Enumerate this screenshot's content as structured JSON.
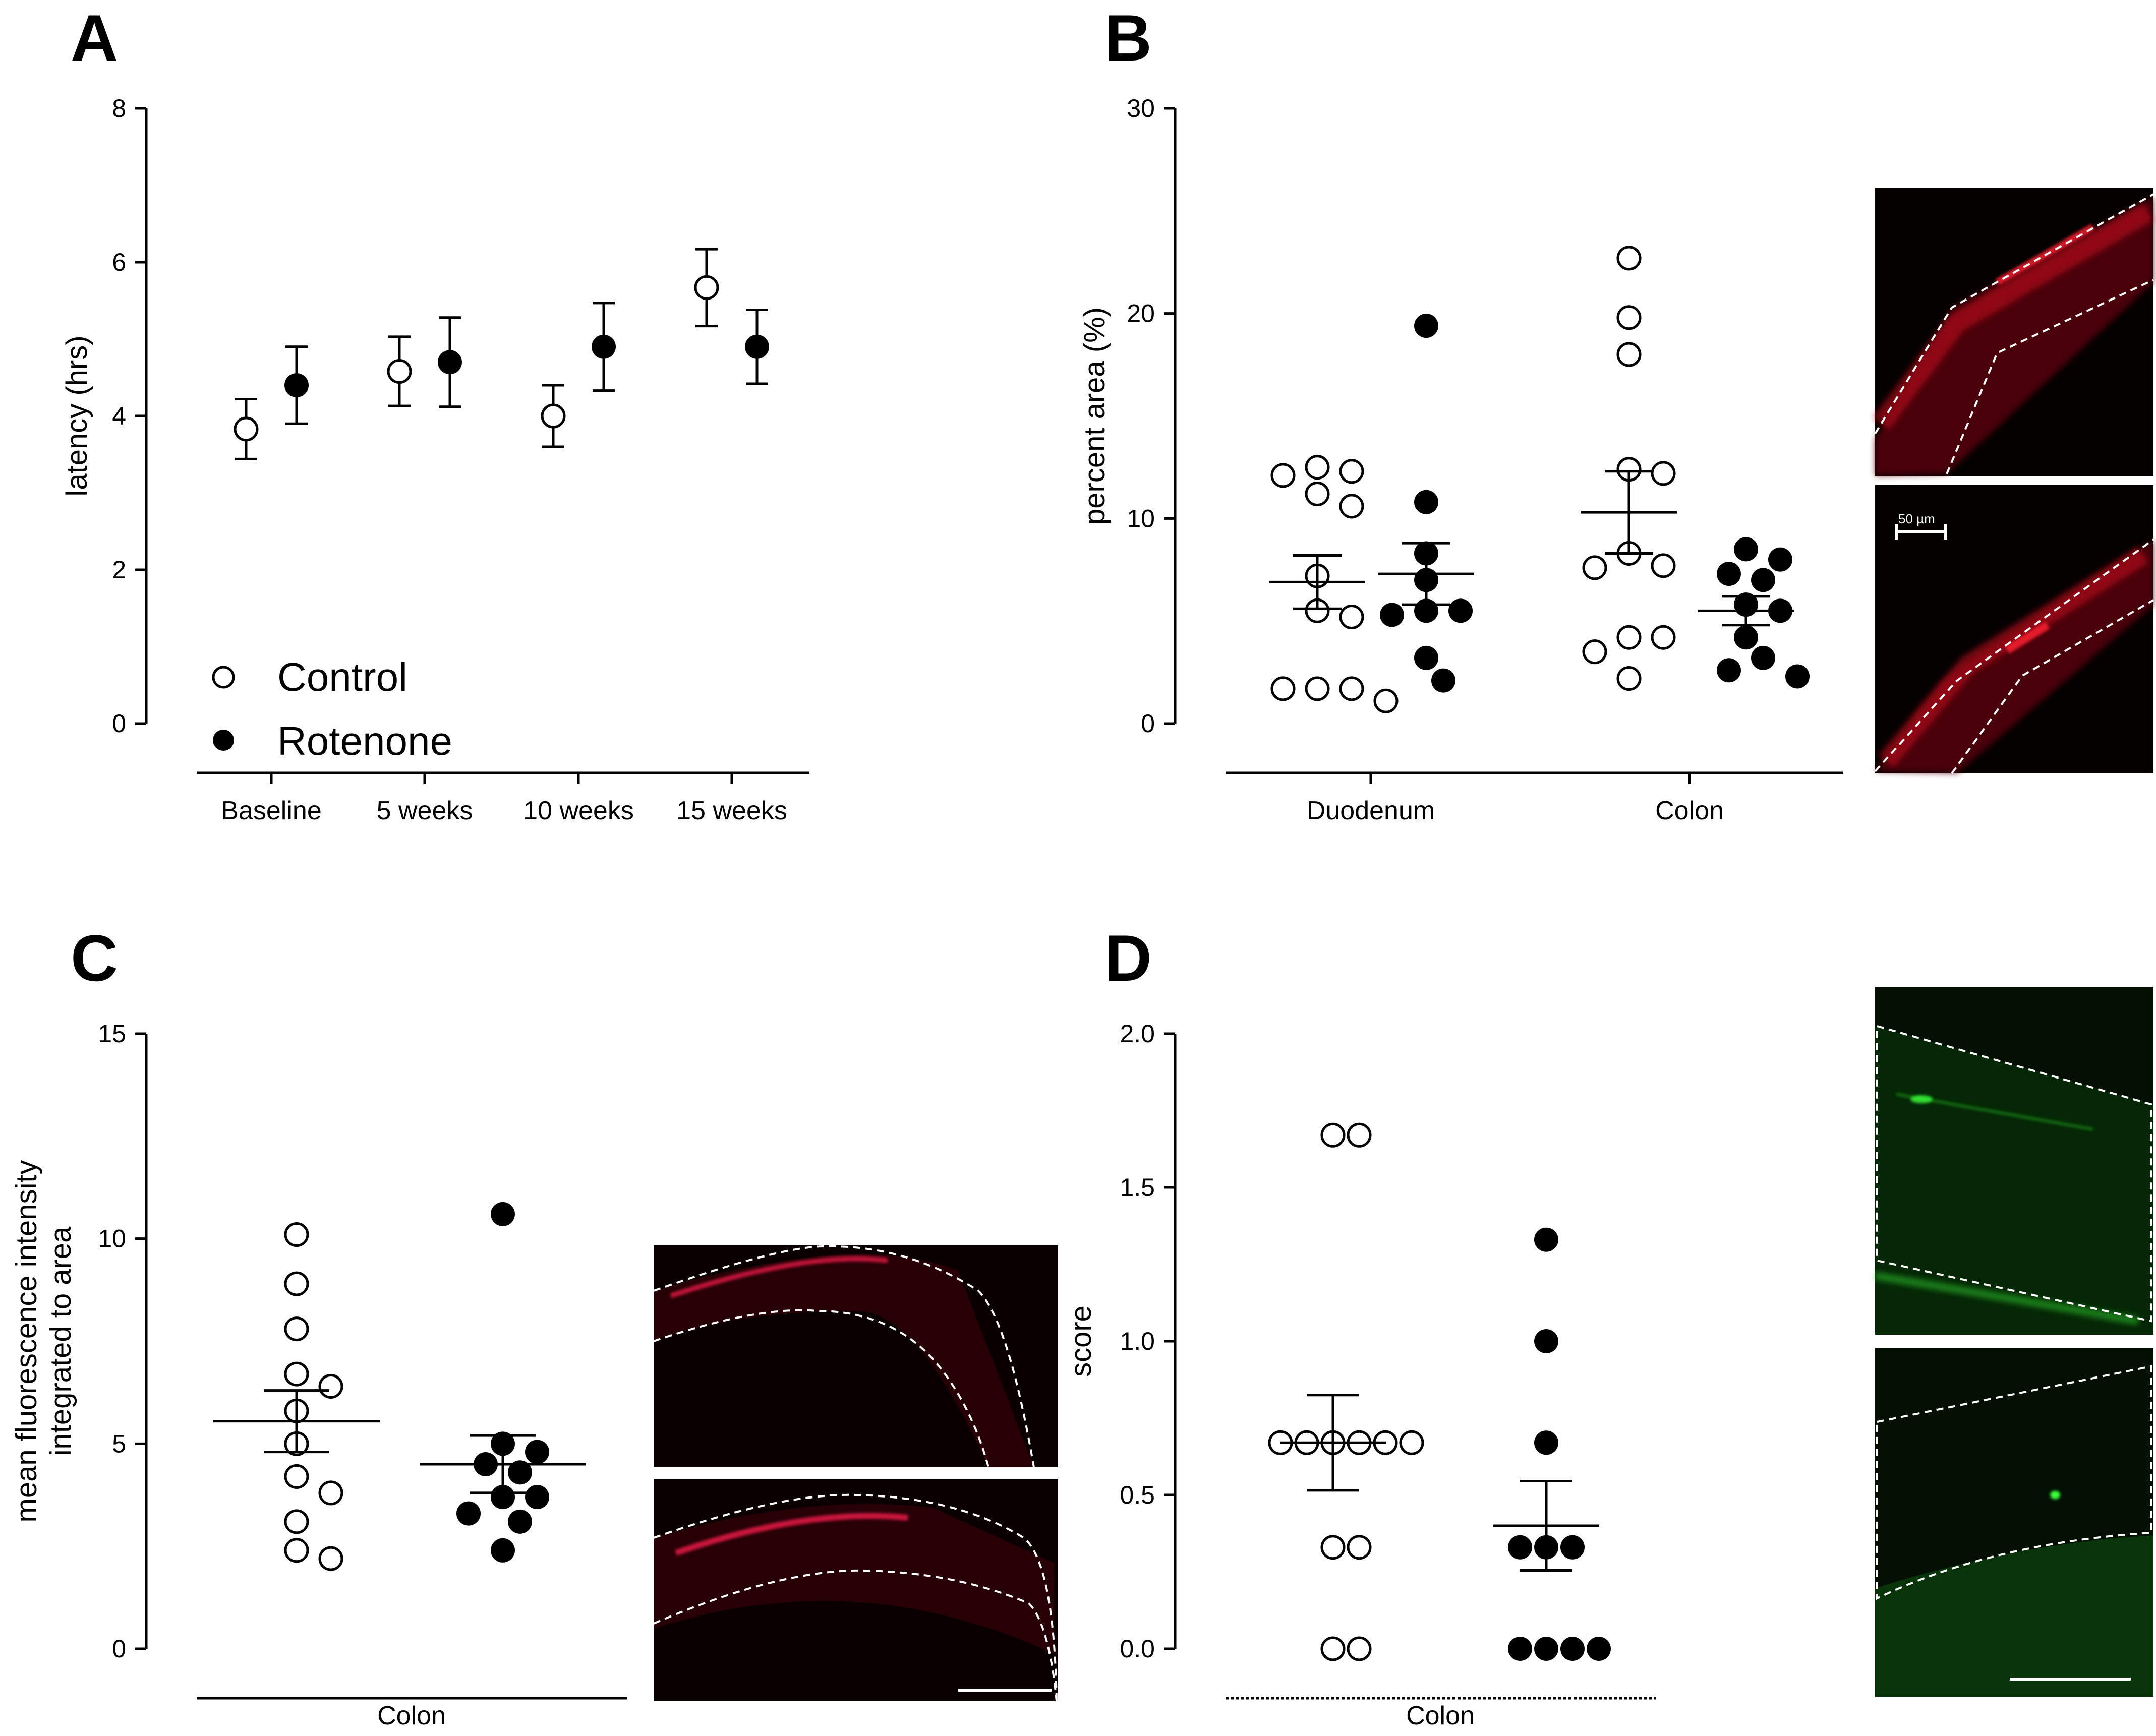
{
  "panels": {
    "A": {
      "letter": "A"
    },
    "B": {
      "letter": "B"
    },
    "C": {
      "letter": "C"
    },
    "D": {
      "letter": "D"
    }
  },
  "legend": {
    "control": "Control",
    "rotenone": "Rotenone"
  },
  "micrographs": {
    "scalebar_label": "50 µm"
  },
  "colors": {
    "open_marker": "#ffffff",
    "filled_marker": "#000000",
    "red_stain": "#ff1a2e",
    "green_stain": "#22dd22"
  },
  "chart_data": [
    {
      "panel": "A",
      "type": "scatter",
      "ylabel": "latency (hrs)",
      "xlabel": "",
      "ylim": [
        0,
        8
      ],
      "yticks": [
        0,
        2,
        4,
        6,
        8
      ],
      "categories": [
        "Baseline",
        "5 weeks",
        "10 weeks",
        "15 weeks"
      ],
      "series": [
        {
          "name": "Control",
          "marker": "open",
          "means": [
            3.83,
            4.58,
            4.0,
            5.67
          ],
          "sem": [
            0.39,
            0.45,
            0.4,
            0.5
          ]
        },
        {
          "name": "Rotenone",
          "marker": "filled",
          "means": [
            4.4,
            4.7,
            4.9,
            4.9
          ],
          "sem": [
            0.5,
            0.58,
            0.57,
            0.48
          ]
        }
      ],
      "legend": "bottom-left"
    },
    {
      "panel": "B",
      "type": "scatter",
      "ylabel": "percent area (%)",
      "xlabel": "",
      "ylim": [
        0,
        30
      ],
      "yticks": [
        0,
        10,
        20,
        30
      ],
      "categories": [
        "Duodenum",
        "Colon"
      ],
      "groups": [
        {
          "category": "Duodenum",
          "name": "Control",
          "marker": "open",
          "mean": 6.9,
          "sem": 1.3,
          "values": [
            12.3,
            12.5,
            12.1,
            11.2,
            10.6,
            7.2,
            5.2,
            5.5,
            1.7,
            1.7,
            1.7,
            1.1
          ]
        },
        {
          "category": "Duodenum",
          "name": "Rotenone",
          "marker": "filled",
          "mean": 7.3,
          "sem": 1.5,
          "values": [
            19.4,
            10.8,
            8.3,
            7.0,
            5.5,
            5.5,
            5.3,
            3.2,
            2.1
          ]
        },
        {
          "category": "Colon",
          "name": "Control",
          "marker": "open",
          "mean": 10.3,
          "sem": 2.0,
          "values": [
            22.7,
            19.8,
            18.0,
            12.4,
            12.2,
            8.3,
            7.7,
            7.6,
            4.2,
            4.2,
            3.5,
            2.2
          ]
        },
        {
          "category": "Colon",
          "name": "Rotenone",
          "marker": "filled",
          "mean": 5.5,
          "sem": 0.7,
          "values": [
            8.5,
            8.0,
            7.3,
            7.0,
            5.8,
            5.5,
            4.2,
            3.2,
            2.6,
            2.3
          ]
        }
      ]
    },
    {
      "panel": "C",
      "type": "scatter",
      "ylabel": "mean fluorescence intensity\nintegrated to area",
      "ylabel_lines": [
        "mean fluorescence intensity",
        "integrated to area"
      ],
      "xlabel": "Colon",
      "ylim": [
        0,
        15
      ],
      "yticks": [
        0,
        5,
        10,
        15
      ],
      "groups": [
        {
          "name": "Control",
          "marker": "open",
          "mean": 5.55,
          "sem": 0.75,
          "values": [
            10.1,
            8.9,
            7.8,
            6.7,
            6.4,
            5.8,
            5.0,
            4.2,
            3.8,
            3.1,
            2.4,
            2.2
          ]
        },
        {
          "name": "Rotenone",
          "marker": "filled",
          "mean": 4.5,
          "sem": 0.7,
          "values": [
            10.6,
            5.0,
            4.8,
            4.5,
            4.3,
            3.7,
            3.7,
            3.3,
            3.1,
            2.4
          ]
        }
      ]
    },
    {
      "panel": "D",
      "type": "scatter",
      "ylabel": "score",
      "xlabel": "Colon",
      "ylim": [
        0,
        2
      ],
      "yticks": [
        "0.0",
        "0.5",
        "1.0",
        "1.5",
        "2.0"
      ],
      "groups": [
        {
          "name": "Control",
          "marker": "open",
          "mean": 0.67,
          "sem": 0.155,
          "values": [
            1.67,
            1.67,
            0.67,
            0.67,
            0.67,
            0.67,
            0.67,
            0.67,
            0.33,
            0.33,
            0.0,
            0.0
          ]
        },
        {
          "name": "Rotenone",
          "marker": "filled",
          "mean": 0.4,
          "sem": 0.145,
          "values": [
            1.33,
            1.0,
            0.67,
            0.33,
            0.33,
            0.33,
            0.0,
            0.0,
            0.0,
            0.0
          ]
        }
      ]
    }
  ]
}
